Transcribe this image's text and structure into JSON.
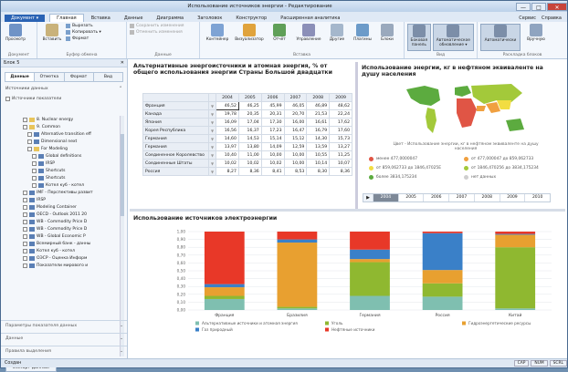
{
  "window": {
    "title": "Использование источников энергии - Редактирование",
    "minimize": "—",
    "maximize": "□",
    "close": "✕"
  },
  "ribbon_tabs": {
    "file": "Документ ▾",
    "tabs": [
      "Главная",
      "Вставка",
      "Данные",
      "Диаграмма",
      "Заголовок",
      "Конструктор",
      "Расширенная аналитика"
    ],
    "right": [
      "Сервис",
      "Справка"
    ]
  },
  "ribbon": {
    "groups": [
      "Документ",
      "Буфер обмена",
      "Данные",
      "Вставка",
      "Вид",
      "Раскладка блоков"
    ],
    "preview": "Просмотр",
    "paste": "Вставить",
    "cut": "Вырезать",
    "copy": "Копировать ▾",
    "format": "Формат",
    "save_changes": "Сохранить изменения",
    "discard_changes": "Отменить изменения",
    "insert_buttons": [
      "Контейнер",
      "Визуализатор",
      "Отчёт",
      "Управление",
      "Другие",
      "Плагины",
      "Блоки"
    ],
    "view_buttons": [
      "Боковая панель",
      "Автоматическое обновление ▾"
    ],
    "layout_buttons": [
      "Автоматически",
      "Вручную"
    ]
  },
  "left_panel": {
    "title": "Блок 5",
    "close": "✕",
    "tabs": [
      "Данные",
      "Отметка",
      "Формат",
      "Вид"
    ],
    "section_sources": "Источники данных",
    "sources_check": "Источники показатели",
    "tree": [
      {
        "label": "8. Nuclear energy",
        "indent": 2,
        "kind": "folder"
      },
      {
        "label": "9. Common",
        "indent": 2,
        "kind": "folder"
      },
      {
        "label": "Alternative transition eff",
        "indent": 3,
        "kind": "item"
      },
      {
        "label": "Dimensional next",
        "indent": 3,
        "kind": "item"
      },
      {
        "label": "For Modeling",
        "indent": 3,
        "kind": "folder"
      },
      {
        "label": "Global definitions",
        "indent": 4,
        "kind": "item"
      },
      {
        "label": "IRSP",
        "indent": 4,
        "kind": "item"
      },
      {
        "label": "Shortcuts",
        "indent": 4,
        "kind": "item"
      },
      {
        "label": "Shortcuts",
        "indent": 4,
        "kind": "item"
      },
      {
        "label": "Котел куб - котел",
        "indent": 4,
        "kind": "item"
      },
      {
        "label": "IMF - Перспективы развит",
        "indent": 2,
        "kind": "item"
      },
      {
        "label": "IRSP",
        "indent": 2,
        "kind": "item"
      },
      {
        "label": "Modeling Container",
        "indent": 2,
        "kind": "item"
      },
      {
        "label": "OECD - Outlook 2011 20",
        "indent": 2,
        "kind": "item"
      },
      {
        "label": "WB - Commodity Price D",
        "indent": 2,
        "kind": "item"
      },
      {
        "label": "WB - Commodity Price D",
        "indent": 2,
        "kind": "item"
      },
      {
        "label": "WB - Global Economic P",
        "indent": 2,
        "kind": "item"
      },
      {
        "label": "Всемирный банк - данны",
        "indent": 2,
        "kind": "item"
      },
      {
        "label": "Котел куб - котел",
        "indent": 2,
        "kind": "item"
      },
      {
        "label": "ОЭСР - Оценка Информ",
        "indent": 2,
        "kind": "item"
      },
      {
        "label": "Показатели мирового и",
        "indent": 2,
        "kind": "item"
      }
    ],
    "import_button": "Импорт данных",
    "accordions": [
      "Параметры показателя данных",
      "Данные",
      "Правила выделения"
    ]
  },
  "table_block": {
    "title": "Альтернативные энергоисточники и атомная энергия, % от общего использования энергии Страны Большой двадцатки",
    "years": [
      "2004",
      "2005",
      "2006",
      "2007",
      "2008",
      "2009"
    ],
    "rows": [
      {
        "name": "Франция",
        "values": [
          "46,52",
          "46,25",
          "45,99",
          "46,05",
          "46,89",
          "48,62"
        ]
      },
      {
        "name": "Канада",
        "values": [
          "19,78",
          "20,35",
          "20,31",
          "20,70",
          "21,53",
          "22,24"
        ]
      },
      {
        "name": "Япония",
        "values": [
          "16,09",
          "17,04",
          "17,30",
          "16,00",
          "16,61",
          "17,62"
        ]
      },
      {
        "name": "Корея Республика",
        "values": [
          "16,56",
          "16,37",
          "17,23",
          "16,47",
          "16,79",
          "17,60"
        ]
      },
      {
        "name": "Германия",
        "values": [
          "14,60",
          "14,53",
          "15,14",
          "15,12",
          "14,30",
          "15,73"
        ]
      },
      {
        "name": "Германия",
        "values": [
          "13,97",
          "13,80",
          "14,09",
          "12,59",
          "13,59",
          "13,27"
        ]
      },
      {
        "name": "Соединенное Королевство",
        "values": [
          "10,40",
          "11,00",
          "10,00",
          "10,00",
          "10,55",
          "11,25"
        ]
      },
      {
        "name": "Соединенные Штаты",
        "values": [
          "10,02",
          "10,02",
          "10,02",
          "10,00",
          "10,14",
          "10,07"
        ]
      },
      {
        "name": "Россия",
        "values": [
          "8,27",
          "8,36",
          "8,41",
          "8,53",
          "8,30",
          "8,36"
        ]
      }
    ]
  },
  "map_block": {
    "title": "Использование энергии, кг в нефтяном эквиваленте на душу населения",
    "note": "Цвет - Использование энергии, кг в нефтяном эквиваленте на душу населения",
    "legend": [
      {
        "label": "менее 477,0000047",
        "color": "#e05545"
      },
      {
        "label": "от 477,000047 до 859,062733",
        "color": "#f0a040"
      },
      {
        "label": "от 859,062733 до 1846,47025E",
        "color": "#f2dd42"
      },
      {
        "label": "от 1846,470256 до 3834,175234",
        "color": "#a3c93a"
      },
      {
        "label": "более 3834,175234",
        "color": "#5cab3f"
      },
      {
        "label": "нет данных",
        "color": "#cfcfcf"
      }
    ],
    "years": [
      "2004",
      "2005",
      "2006",
      "2007",
      "2008",
      "2009",
      "2010"
    ],
    "selected_year": "2004",
    "play": "▶"
  },
  "chart_block": {
    "title": "Использование источников электроэнергии"
  },
  "chart_data": {
    "type": "bar",
    "stacked": "percent",
    "categories": [
      "Франция",
      "Бразилия",
      "Германия",
      "Россия",
      "Китай"
    ],
    "ytick_labels": [
      "0,00",
      "0,10",
      "0,20",
      "0,30",
      "0,40",
      "0,50",
      "0,60",
      "0,70",
      "0,80",
      "0,90",
      "1,00"
    ],
    "ylim": [
      0,
      1
    ],
    "series": [
      {
        "name": "Альтернативные источники и атомная энергия",
        "color": "#7fbfb0",
        "values": [
          0.14,
          0.02,
          0.18,
          0.17,
          0.02
        ]
      },
      {
        "name": "Уголь",
        "color": "#8fb830",
        "values": [
          0.04,
          0.02,
          0.43,
          0.17,
          0.78
        ]
      },
      {
        "name": "Гидроэнергетические ресурсы",
        "color": "#e8a030",
        "values": [
          0.11,
          0.82,
          0.04,
          0.17,
          0.16
        ]
      },
      {
        "name": "Газ природный",
        "color": "#3a80c8",
        "values": [
          0.04,
          0.04,
          0.12,
          0.47,
          0.01
        ]
      },
      {
        "name": "Нефтяные источники",
        "color": "#e83828",
        "values": [
          0.67,
          0.1,
          0.23,
          0.02,
          0.03
        ]
      }
    ]
  },
  "status": {
    "left": "Создан",
    "right": [
      "CAP",
      "NUM",
      "SCRL"
    ]
  }
}
